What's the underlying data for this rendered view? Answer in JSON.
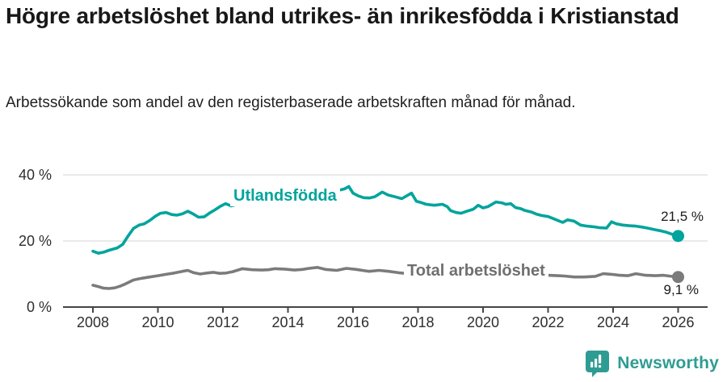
{
  "header": {
    "title": "Högre arbetslöshet bland utrikes- än inrikesfödda i Kristianstad",
    "subtitle": "Arbetssökande som andel av den registerbaserade arbetskraften månad för månad."
  },
  "chart_data": {
    "type": "line",
    "title": "Högre arbetslöshet bland utrikes- än inrikesfödda i Kristianstad",
    "subtitle": "Arbetssökande som andel av den registerbaserade arbetskraften månad för månad.",
    "xlabel": "",
    "ylabel": "",
    "x_axis": {
      "ticks": [
        2008,
        2010,
        2012,
        2014,
        2016,
        2018,
        2020,
        2022,
        2024,
        2026
      ],
      "range": [
        2007.1,
        2026.9
      ]
    },
    "y_axis": {
      "ticks": [
        {
          "value": 0,
          "label": "0 %"
        },
        {
          "value": 20,
          "label": "20 %"
        },
        {
          "value": 40,
          "label": "40 %"
        }
      ],
      "range": [
        0,
        40
      ]
    },
    "grid": "horizontal",
    "legend": "inline-labels",
    "series": [
      {
        "name": "Utlandsfödda",
        "color": "#00a49c",
        "end_value": 21.5,
        "end_label": "21,5 %",
        "points": [
          [
            2008.0,
            16.9
          ],
          [
            2008.17,
            16.3
          ],
          [
            2008.33,
            16.6
          ],
          [
            2008.5,
            17.2
          ],
          [
            2008.75,
            17.9
          ],
          [
            2008.92,
            19.0
          ],
          [
            2009.08,
            21.5
          ],
          [
            2009.25,
            23.8
          ],
          [
            2009.42,
            24.8
          ],
          [
            2009.58,
            25.2
          ],
          [
            2009.75,
            26.2
          ],
          [
            2009.92,
            27.5
          ],
          [
            2010.08,
            28.4
          ],
          [
            2010.25,
            28.6
          ],
          [
            2010.42,
            28.0
          ],
          [
            2010.58,
            27.8
          ],
          [
            2010.75,
            28.2
          ],
          [
            2010.92,
            29.0
          ],
          [
            2011.08,
            28.2
          ],
          [
            2011.25,
            27.2
          ],
          [
            2011.42,
            27.3
          ],
          [
            2011.58,
            28.4
          ],
          [
            2011.75,
            29.4
          ],
          [
            2011.92,
            30.5
          ],
          [
            2012.08,
            31.3
          ],
          [
            2012.25,
            30.6
          ],
          [
            2012.42,
            31.0
          ],
          [
            2012.58,
            31.3
          ],
          [
            2012.75,
            31.7
          ],
          [
            2013.0,
            32.2
          ],
          [
            2013.25,
            32.6
          ],
          [
            2013.5,
            32.9
          ],
          [
            2013.75,
            33.2
          ],
          [
            2014.0,
            33.4
          ],
          [
            2014.25,
            33.7
          ],
          [
            2014.5,
            34.0
          ],
          [
            2014.75,
            34.3
          ],
          [
            2015.0,
            34.6
          ],
          [
            2015.25,
            35.0
          ],
          [
            2015.5,
            35.2
          ],
          [
            2015.75,
            35.8
          ],
          [
            2015.87,
            36.5
          ],
          [
            2016.0,
            34.5
          ],
          [
            2016.17,
            33.6
          ],
          [
            2016.33,
            33.1
          ],
          [
            2016.5,
            33.0
          ],
          [
            2016.67,
            33.4
          ],
          [
            2016.9,
            34.8
          ],
          [
            2017.08,
            33.9
          ],
          [
            2017.25,
            33.5
          ],
          [
            2017.5,
            32.8
          ],
          [
            2017.8,
            34.5
          ],
          [
            2017.95,
            32.0
          ],
          [
            2018.1,
            31.6
          ],
          [
            2018.25,
            31.1
          ],
          [
            2018.5,
            30.8
          ],
          [
            2018.75,
            31.1
          ],
          [
            2018.9,
            30.4
          ],
          [
            2019.0,
            29.2
          ],
          [
            2019.17,
            28.6
          ],
          [
            2019.33,
            28.4
          ],
          [
            2019.5,
            29.0
          ],
          [
            2019.7,
            29.6
          ],
          [
            2019.85,
            30.8
          ],
          [
            2020.0,
            30.0
          ],
          [
            2020.15,
            30.4
          ],
          [
            2020.4,
            31.8
          ],
          [
            2020.6,
            31.5
          ],
          [
            2020.7,
            31.1
          ],
          [
            2020.85,
            31.3
          ],
          [
            2021.0,
            30.1
          ],
          [
            2021.15,
            29.8
          ],
          [
            2021.3,
            29.2
          ],
          [
            2021.5,
            28.7
          ],
          [
            2021.65,
            28.1
          ],
          [
            2021.8,
            27.7
          ],
          [
            2022.0,
            27.4
          ],
          [
            2022.15,
            26.8
          ],
          [
            2022.3,
            26.2
          ],
          [
            2022.45,
            25.6
          ],
          [
            2022.6,
            26.4
          ],
          [
            2022.8,
            26.0
          ],
          [
            2023.0,
            24.8
          ],
          [
            2023.2,
            24.5
          ],
          [
            2023.4,
            24.3
          ],
          [
            2023.6,
            24.0
          ],
          [
            2023.8,
            23.9
          ],
          [
            2023.95,
            25.8
          ],
          [
            2024.1,
            25.2
          ],
          [
            2024.3,
            24.8
          ],
          [
            2024.5,
            24.6
          ],
          [
            2024.7,
            24.5
          ],
          [
            2024.9,
            24.2
          ],
          [
            2025.1,
            23.8
          ],
          [
            2025.3,
            23.4
          ],
          [
            2025.5,
            23.0
          ],
          [
            2025.65,
            22.6
          ],
          [
            2025.8,
            22.1
          ],
          [
            2025.9,
            21.7
          ],
          [
            2026.0,
            21.5
          ]
        ]
      },
      {
        "name": "Total arbetslöshet",
        "color": "#7b7b7b",
        "end_value": 9.1,
        "end_label": "9,1 %",
        "points": [
          [
            2008.0,
            6.6
          ],
          [
            2008.17,
            6.2
          ],
          [
            2008.33,
            5.7
          ],
          [
            2008.5,
            5.6
          ],
          [
            2008.67,
            5.8
          ],
          [
            2008.83,
            6.3
          ],
          [
            2009.0,
            7.0
          ],
          [
            2009.25,
            8.2
          ],
          [
            2009.5,
            8.7
          ],
          [
            2009.75,
            9.1
          ],
          [
            2010.0,
            9.5
          ],
          [
            2010.25,
            9.9
          ],
          [
            2010.5,
            10.3
          ],
          [
            2010.75,
            10.8
          ],
          [
            2010.92,
            11.1
          ],
          [
            2011.1,
            10.4
          ],
          [
            2011.3,
            10.0
          ],
          [
            2011.5,
            10.3
          ],
          [
            2011.7,
            10.5
          ],
          [
            2011.9,
            10.2
          ],
          [
            2012.1,
            10.3
          ],
          [
            2012.3,
            10.7
          ],
          [
            2012.6,
            11.6
          ],
          [
            2012.9,
            11.3
          ],
          [
            2013.2,
            11.2
          ],
          [
            2013.4,
            11.3
          ],
          [
            2013.6,
            11.6
          ],
          [
            2013.9,
            11.5
          ],
          [
            2014.2,
            11.2
          ],
          [
            2014.45,
            11.4
          ],
          [
            2014.65,
            11.7
          ],
          [
            2014.9,
            12.0
          ],
          [
            2015.15,
            11.4
          ],
          [
            2015.5,
            11.1
          ],
          [
            2015.8,
            11.7
          ],
          [
            2016.1,
            11.4
          ],
          [
            2016.35,
            11.0
          ],
          [
            2016.5,
            10.8
          ],
          [
            2016.8,
            11.1
          ],
          [
            2017.1,
            10.8
          ],
          [
            2017.4,
            10.4
          ],
          [
            2017.6,
            10.2
          ],
          [
            2018.0,
            9.7
          ],
          [
            2018.4,
            9.4
          ],
          [
            2018.8,
            9.1
          ],
          [
            2019.2,
            9.0
          ],
          [
            2019.6,
            9.1
          ],
          [
            2020.0,
            9.6
          ],
          [
            2020.4,
            10.3
          ],
          [
            2020.8,
            10.1
          ],
          [
            2021.2,
            9.9
          ],
          [
            2021.6,
            9.7
          ],
          [
            2022.0,
            9.6
          ],
          [
            2022.3,
            9.5
          ],
          [
            2022.5,
            9.4
          ],
          [
            2022.8,
            9.1
          ],
          [
            2023.1,
            9.1
          ],
          [
            2023.45,
            9.3
          ],
          [
            2023.7,
            10.1
          ],
          [
            2023.95,
            9.9
          ],
          [
            2024.2,
            9.6
          ],
          [
            2024.45,
            9.5
          ],
          [
            2024.7,
            10.1
          ],
          [
            2025.0,
            9.6
          ],
          [
            2025.3,
            9.5
          ],
          [
            2025.55,
            9.6
          ],
          [
            2025.8,
            9.3
          ],
          [
            2026.0,
            9.1
          ]
        ]
      }
    ]
  },
  "footer": {
    "brand": "Newsworthy"
  },
  "colors": {
    "accent_teal": "#00a49c",
    "series_gray": "#7b7b7b",
    "logo_teal": "#2f9c93",
    "gridline": "#dcdcdc",
    "axis": "#454545",
    "text_dark": "#1a1a1a"
  }
}
